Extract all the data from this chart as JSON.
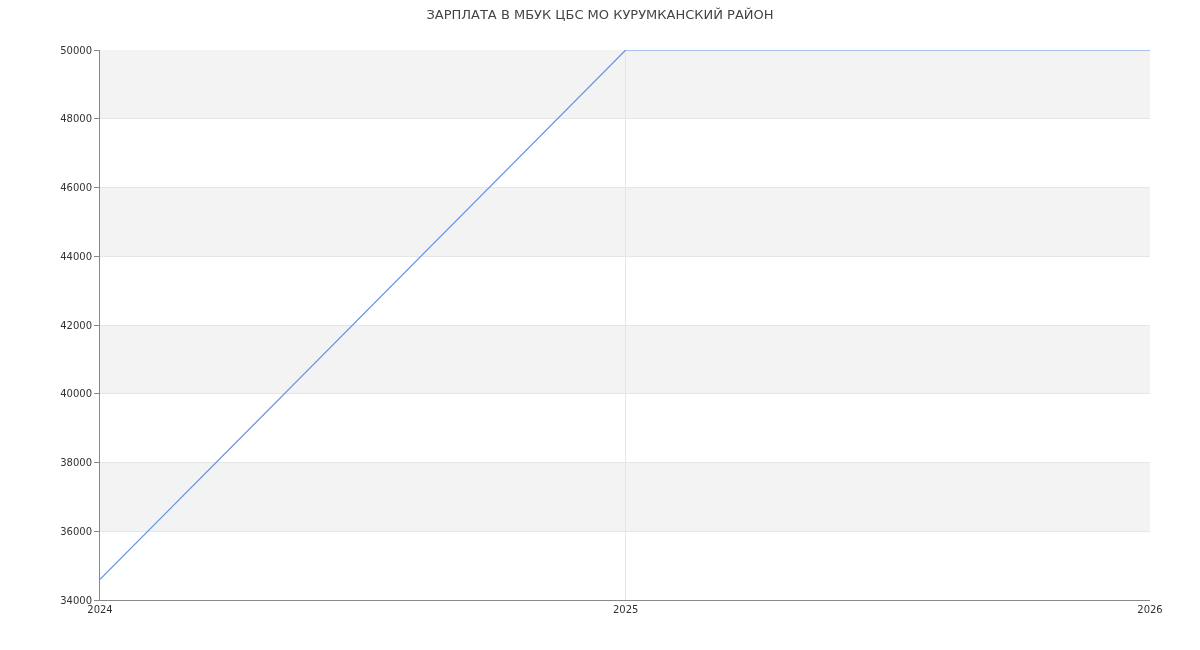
{
  "chart_data": {
    "type": "line",
    "title": "ЗАРПЛАТА В МБУК ЦБС МО КУРУМКАНСКИЙ РАЙОН",
    "x": [
      "2024",
      "2025",
      "2026"
    ],
    "series": [
      {
        "color": "#5f93ec",
        "values": [
          34600,
          50000,
          50000
        ]
      }
    ],
    "xlim": [
      "2024",
      "2026"
    ],
    "xticks": [
      "2024",
      "2025",
      "2026"
    ],
    "ylim": [
      34000,
      50000
    ],
    "yticks": [
      34000,
      36000,
      38000,
      40000,
      42000,
      44000,
      46000,
      48000,
      50000
    ],
    "bands": [
      {
        "axis": "y",
        "from": 36000,
        "to": 38000,
        "color": "#f3f3f3"
      },
      {
        "axis": "y",
        "from": 40000,
        "to": 42000,
        "color": "#f3f3f3"
      },
      {
        "axis": "y",
        "from": 44000,
        "to": 46000,
        "color": "#f3f3f3"
      },
      {
        "axis": "y",
        "from": 48000,
        "to": 50000,
        "color": "#f3f3f3"
      }
    ],
    "grid": true,
    "line_style": "solid"
  }
}
